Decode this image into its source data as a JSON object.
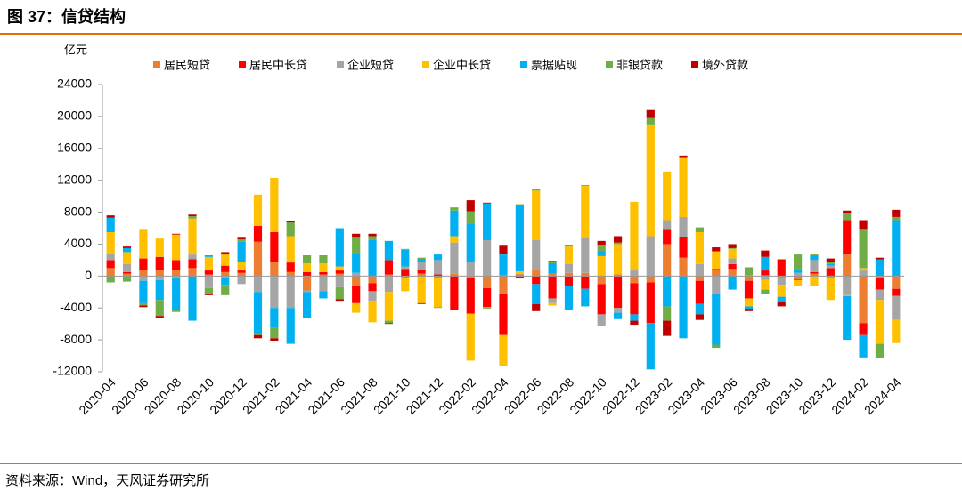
{
  "chart_data": {
    "type": "bar",
    "stacked": true,
    "title": "图 37：信贷结构",
    "y_label": "亿元",
    "source": "资料来源：Wind，天风证券研究所",
    "categories": [
      "2020-04",
      null,
      "2020-06",
      null,
      "2020-08",
      null,
      "2020-10",
      null,
      "2020-12",
      null,
      "2021-02",
      null,
      "2021-04",
      null,
      "2021-06",
      null,
      "2021-08",
      null,
      "2021-10",
      null,
      "2021-12",
      null,
      "2022-02",
      null,
      "2022-04",
      null,
      "2022-06",
      null,
      "2022-08",
      null,
      "2022-10",
      null,
      "2022-12",
      null,
      "2023-02",
      null,
      "2023-04",
      null,
      "2023-06",
      null,
      "2023-08",
      null,
      "2023-10",
      null,
      "2023-12",
      null,
      "2024-02",
      null,
      "2024-04"
    ],
    "ylim": [
      -12000,
      24000
    ],
    "yticks": [
      -12000,
      -8000,
      -4000,
      0,
      4000,
      8000,
      12000,
      16000,
      20000,
      24000
    ],
    "series": [
      {
        "name": "居民短贷",
        "color": "#ED7D31",
        "values": [
          1000,
          300,
          800,
          700,
          800,
          1000,
          200,
          500,
          400,
          4300,
          1800,
          500,
          -1800,
          200,
          300,
          -1200,
          -900,
          200,
          -300,
          300,
          -300,
          300,
          -300,
          -1500,
          -2300,
          200,
          700,
          300,
          400,
          400,
          -1000,
          200,
          -900,
          -800,
          4000,
          2300,
          -600,
          700,
          900,
          -600,
          100,
          -300,
          -400,
          300,
          -300,
          2800,
          -5900,
          -200,
          -1600
        ]
      },
      {
        "name": "居民中长贷",
        "color": "#FF0000",
        "values": [
          1000,
          200,
          1400,
          1700,
          1200,
          1100,
          500,
          800,
          300,
          2000,
          3700,
          1200,
          500,
          300,
          400,
          -2200,
          -1000,
          1800,
          900,
          500,
          200,
          -4300,
          -4400,
          -2400,
          -5100,
          -300,
          -1000,
          -2800,
          -1200,
          -1600,
          -3800,
          -4000,
          -3900,
          -5100,
          1800,
          2600,
          -2900,
          200,
          600,
          -2200,
          600,
          2100,
          -100,
          200,
          1000,
          4200,
          -1500,
          -1500,
          -900
        ]
      },
      {
        "name": "企业短贷",
        "color": "#A5A5A5",
        "values": [
          800,
          1000,
          -600,
          -500,
          -300,
          600,
          -1500,
          -300,
          -1000,
          -2000,
          -4000,
          -4000,
          -200,
          -1900,
          -1400,
          400,
          -1200,
          -2000,
          300,
          1000,
          1800,
          3900,
          1700,
          4500,
          100,
          100,
          3800,
          -600,
          1100,
          4400,
          -1400,
          -600,
          700,
          5000,
          1200,
          2500,
          1500,
          -2300,
          700,
          100,
          -500,
          -800,
          400,
          1500,
          300,
          -2400,
          700,
          -1300,
          -3000
        ]
      },
      {
        "name": "企业中长贷",
        "color": "#FFC000",
        "values": [
          2700,
          1500,
          3600,
          2300,
          3200,
          4500,
          1700,
          1400,
          1100,
          3900,
          6800,
          3300,
          1100,
          1100,
          500,
          -1200,
          -2700,
          -3600,
          -1600,
          -3400,
          -3600,
          800,
          -5900,
          -100,
          -3900,
          300,
          6200,
          -300,
          2200,
          6500,
          2500,
          3800,
          8600,
          14000,
          6100,
          7400,
          4000,
          2200,
          1200,
          -1000,
          -1200,
          -1500,
          -800,
          -1300,
          -2700,
          -100,
          300,
          -5500,
          -2900
        ]
      },
      {
        "name": "票据贴现",
        "color": "#00B0F0",
        "values": [
          1800,
          500,
          -2800,
          -2500,
          -4000,
          -5600,
          200,
          -800,
          2500,
          -5200,
          -2500,
          -4500,
          -3200,
          -900,
          4800,
          2400,
          4500,
          2400,
          2100,
          300,
          700,
          3200,
          4900,
          4600,
          2600,
          8300,
          -2500,
          1300,
          -3000,
          -2200,
          600,
          -800,
          -800,
          -5800,
          -3800,
          -7800,
          -1300,
          -6300,
          -1700,
          -300,
          1700,
          -600,
          500,
          600,
          200,
          -5500,
          -2800,
          2100,
          7000
        ]
      },
      {
        "name": "非银贷款",
        "color": "#70AD47",
        "values": [
          -800,
          -700,
          -300,
          -2000,
          -200,
          300,
          -800,
          -1300,
          300,
          -200,
          -1300,
          1700,
          1000,
          1000,
          -1500,
          2000,
          500,
          -300,
          100,
          200,
          -100,
          400,
          1500,
          -100,
          100,
          100,
          200,
          200,
          200,
          100,
          800,
          200,
          0,
          800,
          -1800,
          0,
          600,
          -400,
          100,
          1000,
          -500,
          0,
          1800,
          100,
          300,
          900,
          4800,
          -1800,
          400
        ]
      },
      {
        "name": "境外贷款",
        "color": "#C00000",
        "values": [
          300,
          200,
          -200,
          -200,
          100,
          200,
          -100,
          300,
          200,
          -400,
          -300,
          200,
          0,
          0,
          -200,
          500,
          300,
          -100,
          0,
          -100,
          0,
          0,
          1400,
          100,
          1000,
          0,
          -900,
          100,
          0,
          0,
          500,
          800,
          -500,
          1000,
          -1900,
          300,
          -700,
          500,
          500,
          -300,
          800,
          -600,
          0,
          0,
          400,
          300,
          1200,
          200,
          900
        ]
      }
    ]
  }
}
